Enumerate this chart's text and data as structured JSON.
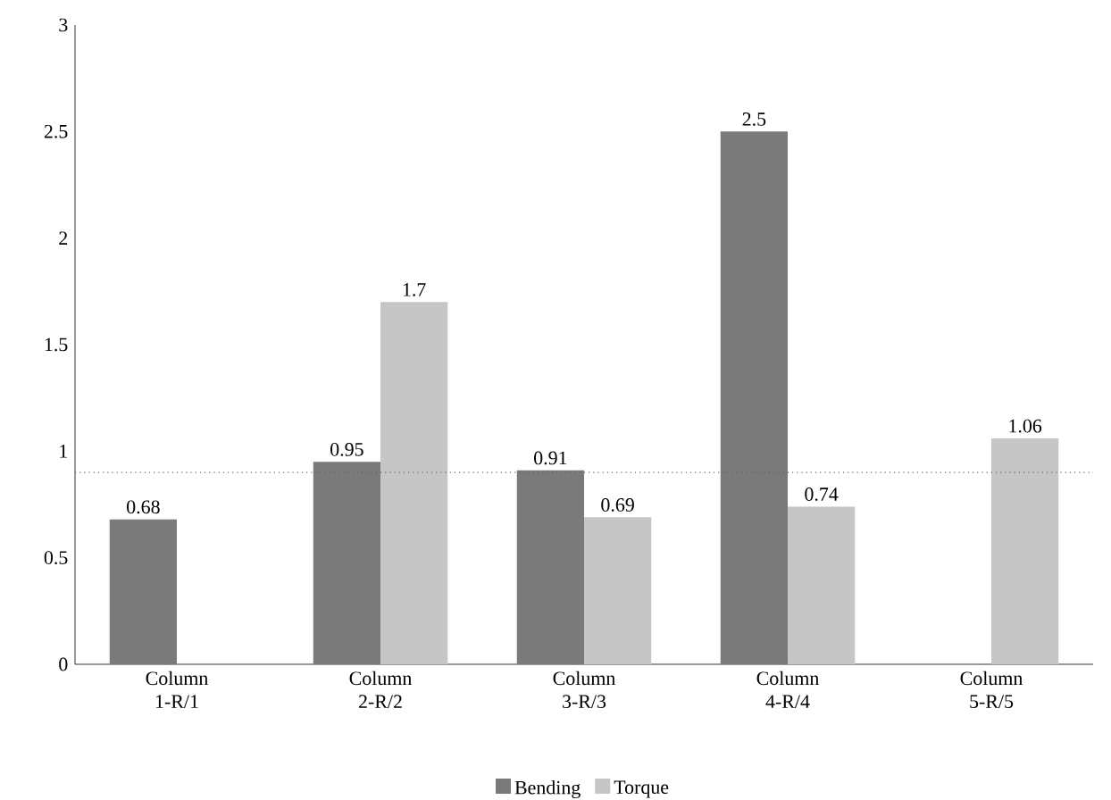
{
  "chart_data": {
    "type": "bar",
    "categories": [
      "Column 1-R/1",
      "Column 2-R/2",
      "Column 3-R/3",
      "Column 4-R/4",
      "Column 5-R/5"
    ],
    "series": [
      {
        "name": "Bending",
        "color": "#7a7a7a",
        "values": [
          0.68,
          0.95,
          0.91,
          2.5,
          null
        ]
      },
      {
        "name": "Torque",
        "color": "#c6c6c6",
        "values": [
          null,
          1.7,
          0.69,
          0.74,
          1.06
        ]
      }
    ],
    "ylim": [
      0,
      3
    ],
    "yticks": [
      0,
      0.5,
      1,
      1.5,
      2,
      2.5,
      3
    ],
    "ref_lines": [
      {
        "axis": "y",
        "value": 0.9,
        "color": "#666666",
        "line_style": "dotted"
      }
    ],
    "data_labels": true,
    "legend": "bottom",
    "grid": false
  }
}
